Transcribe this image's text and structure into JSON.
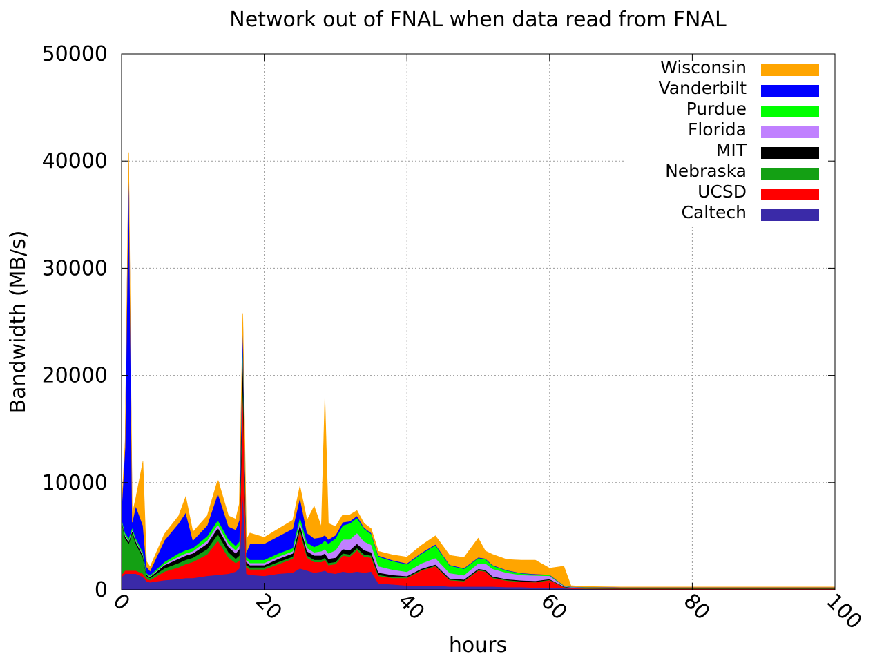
{
  "chart_data": {
    "type": "area",
    "stacked": true,
    "title": "Network out of FNAL when data read from FNAL",
    "xlabel": "hours",
    "ylabel": "Bandwidth (MB/s)",
    "xlim": [
      0,
      100
    ],
    "ylim": [
      0,
      50000
    ],
    "x_ticks": [
      0,
      20,
      40,
      60,
      80,
      100
    ],
    "y_ticks": [
      0,
      10000,
      20000,
      30000,
      40000,
      50000
    ],
    "grid": true,
    "legend_position": "top-right",
    "x": [
      0,
      0.5,
      1,
      1.5,
      2,
      3,
      3.5,
      4,
      6,
      8,
      9,
      10,
      12,
      13.5,
      15,
      16,
      16.5,
      17,
      17.5,
      18,
      20,
      22,
      24,
      25,
      26,
      27,
      28,
      28.5,
      29,
      30,
      31,
      32,
      33,
      34,
      35,
      36,
      38,
      40,
      42,
      44,
      46,
      48,
      50,
      51,
      52,
      54,
      56,
      58,
      60,
      62,
      63,
      65,
      70,
      80,
      90,
      100
    ],
    "series": [
      {
        "name": "Caltech",
        "color": "#3a2aa8",
        "values": [
          1200,
          1500,
          1500,
          1500,
          1500,
          1200,
          800,
          700,
          900,
          1000,
          1100,
          1100,
          1300,
          1400,
          1500,
          1700,
          2000,
          9000,
          1500,
          1400,
          1300,
          1500,
          1600,
          2000,
          1800,
          1600,
          1700,
          1800,
          1600,
          1500,
          1700,
          1600,
          1700,
          1600,
          1700,
          600,
          500,
          400,
          400,
          400,
          300,
          300,
          300,
          300,
          300,
          250,
          250,
          200,
          200,
          150,
          100,
          80,
          60,
          60,
          60,
          60
        ]
      },
      {
        "name": "UCSD",
        "color": "#ff0000",
        "values": [
          200,
          300,
          300,
          300,
          300,
          300,
          200,
          200,
          800,
          1100,
          1300,
          1500,
          2000,
          3200,
          1500,
          800,
          700,
          10000,
          600,
          500,
          600,
          900,
          1300,
          3500,
          1200,
          1000,
          900,
          1000,
          700,
          900,
          1500,
          1500,
          2000,
          1500,
          1300,
          700,
          600,
          700,
          1400,
          1800,
          600,
          500,
          1500,
          1400,
          800,
          600,
          500,
          500,
          700,
          100,
          60,
          40,
          40,
          40,
          40,
          40
        ]
      },
      {
        "name": "Nebraska",
        "color": "#14a014",
        "values": [
          5000,
          3000,
          2500,
          3500,
          2500,
          1500,
          300,
          200,
          300,
          400,
          400,
          400,
          500,
          600,
          500,
          400,
          500,
          600,
          200,
          200,
          200,
          200,
          200,
          200,
          200,
          200,
          200,
          200,
          200,
          200,
          200,
          200,
          200,
          200,
          200,
          100,
          80,
          80,
          60,
          60,
          60,
          60,
          60,
          60,
          60,
          60,
          50,
          50,
          40,
          30,
          30,
          30,
          30,
          30,
          30,
          30
        ]
      },
      {
        "name": "MIT",
        "color": "#000000",
        "values": [
          100,
          200,
          200,
          200,
          200,
          200,
          100,
          100,
          300,
          400,
          400,
          400,
          500,
          600,
          500,
          500,
          600,
          3000,
          300,
          200,
          200,
          300,
          300,
          400,
          400,
          400,
          400,
          400,
          400,
          400,
          400,
          400,
          400,
          400,
          300,
          200,
          200,
          100,
          100,
          100,
          100,
          100,
          100,
          100,
          100,
          80,
          80,
          80,
          60,
          30,
          30,
          30,
          30,
          30,
          30,
          30
        ]
      },
      {
        "name": "Florida",
        "color": "#c080ff",
        "values": [
          50,
          100,
          100,
          100,
          100,
          100,
          50,
          50,
          100,
          200,
          200,
          200,
          300,
          300,
          300,
          300,
          300,
          400,
          200,
          200,
          200,
          200,
          200,
          300,
          300,
          300,
          400,
          400,
          500,
          700,
          900,
          1000,
          1000,
          800,
          700,
          600,
          500,
          400,
          500,
          600,
          500,
          400,
          500,
          600,
          700,
          600,
          500,
          500,
          300,
          50,
          30,
          30,
          30,
          30,
          30,
          30
        ]
      },
      {
        "name": "Purdue",
        "color": "#00ff00",
        "values": [
          100,
          200,
          200,
          200,
          200,
          200,
          100,
          100,
          200,
          300,
          300,
          300,
          400,
          400,
          400,
          400,
          400,
          500,
          300,
          300,
          300,
          300,
          300,
          400,
          500,
          500,
          700,
          800,
          900,
          1100,
          1300,
          1500,
          1400,
          1200,
          1000,
          900,
          800,
          700,
          900,
          1200,
          700,
          600,
          500,
          400,
          300,
          200,
          150,
          100,
          80,
          30,
          20,
          20,
          20,
          20,
          20,
          20
        ]
      },
      {
        "name": "Vanderbilt",
        "color": "#0000ff",
        "values": [
          800,
          8000,
          35000,
          500,
          3000,
          2500,
          600,
          400,
          2000,
          2800,
          3500,
          700,
          1000,
          2500,
          1200,
          1500,
          2000,
          1500,
          400,
          1500,
          1500,
          1600,
          1800,
          1800,
          900,
          800,
          600,
          500,
          400,
          300,
          300,
          200,
          200,
          100,
          100,
          100,
          80,
          80,
          80,
          80,
          60,
          60,
          60,
          60,
          50,
          40,
          40,
          40,
          40,
          20,
          20,
          20,
          20,
          20,
          20,
          20
        ]
      },
      {
        "name": "Wisconsin",
        "color": "#ffa500",
        "values": [
          300,
          500,
          1000,
          800,
          800,
          6000,
          500,
          400,
          600,
          700,
          1500,
          800,
          900,
          1300,
          1000,
          1000,
          1500,
          800,
          1200,
          1000,
          600,
          700,
          800,
          1100,
          1200,
          3000,
          1000,
          13000,
          1500,
          800,
          700,
          600,
          500,
          400,
          400,
          400,
          500,
          600,
          700,
          800,
          900,
          1000,
          1800,
          700,
          1000,
          1000,
          1200,
          1300,
          600,
          1800,
          100,
          60,
          40,
          40,
          40,
          40
        ]
      }
    ],
    "legend_order": [
      "Wisconsin",
      "Vanderbilt",
      "Purdue",
      "Florida",
      "MIT",
      "Nebraska",
      "UCSD",
      "Caltech"
    ]
  }
}
